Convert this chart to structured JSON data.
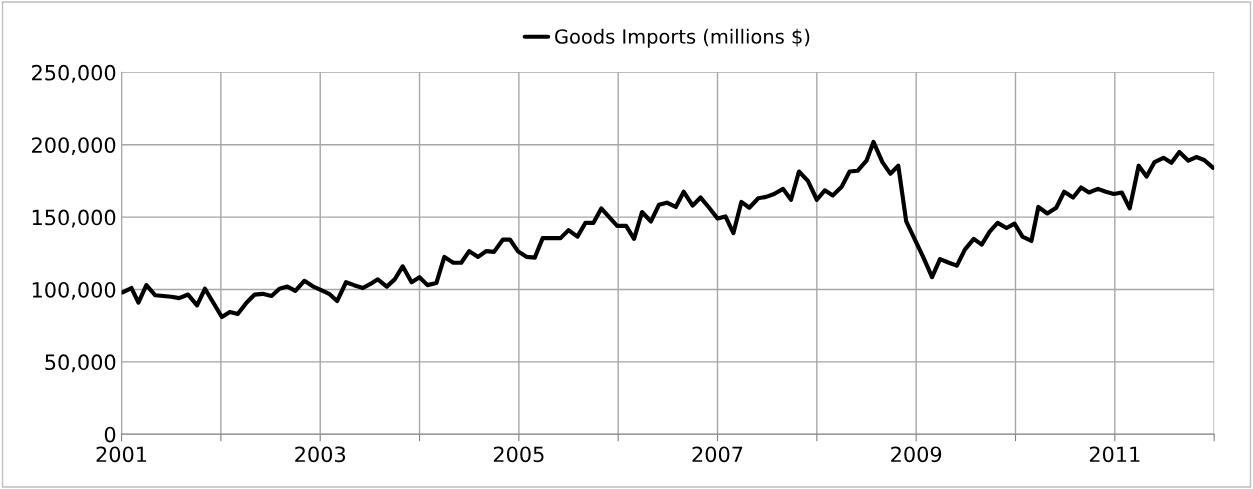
{
  "chart_data": {
    "type": "line",
    "x": [
      2001.01,
      2001.1,
      2001.17,
      2001.25,
      2001.34,
      2001.5,
      2001.58,
      2001.67,
      2001.76,
      2001.84,
      2002.01,
      2002.09,
      2002.17,
      2002.26,
      2002.34,
      2002.42,
      2002.51,
      2002.59,
      2002.67,
      2002.75,
      2002.84,
      2002.93,
      2003.01,
      2003.09,
      2003.17,
      2003.26,
      2003.34,
      2003.43,
      2003.51,
      2003.58,
      2003.67,
      2003.75,
      2003.83,
      2003.92,
      2004.0,
      2004.08,
      2004.17,
      2004.25,
      2004.34,
      2004.42,
      2004.5,
      2004.59,
      2004.67,
      2004.75,
      2004.84,
      2004.91,
      2004.99,
      2005.08,
      2005.16,
      2005.24,
      2005.42,
      2005.5,
      2005.59,
      2005.67,
      2005.75,
      2005.83,
      2005.91,
      2005.99,
      2006.08,
      2006.16,
      2006.24,
      2006.33,
      2006.41,
      2006.49,
      2006.58,
      2006.66,
      2006.75,
      2006.83,
      2006.91,
      2007.0,
      2007.08,
      2007.16,
      2007.24,
      2007.32,
      2007.41,
      2007.49,
      2007.57,
      2007.66,
      2007.74,
      2007.82,
      2007.91,
      2008.0,
      2008.08,
      2008.16,
      2008.25,
      2008.33,
      2008.41,
      2008.5,
      2008.57,
      2008.66,
      2008.74,
      2008.82,
      2008.9,
      2008.98,
      2009.07,
      2009.16,
      2009.24,
      2009.33,
      2009.41,
      2009.49,
      2009.58,
      2009.66,
      2009.74,
      2009.82,
      2009.91,
      2009.99,
      2010.07,
      2010.16,
      2010.23,
      2010.32,
      2010.41,
      2010.49,
      2010.58,
      2010.66,
      2010.74,
      2010.83,
      2010.91,
      2010.99,
      2011.07,
      2011.15,
      2011.24,
      2011.32,
      2011.4,
      2011.49,
      2011.57,
      2011.65,
      2011.74,
      2011.82,
      2011.9,
      2011.99
    ],
    "series": [
      {
        "name": "Goods Imports (millions $)",
        "color": "#000000",
        "values": [
          98000,
          101000,
          91000,
          103000,
          96000,
          95000,
          94000,
          96500,
          89000,
          100500,
          81000,
          84500,
          83000,
          91000,
          96500,
          97000,
          95500,
          100500,
          102000,
          99000,
          106000,
          102000,
          99500,
          97000,
          92000,
          105000,
          103000,
          101000,
          104000,
          107000,
          102000,
          107000,
          116000,
          105000,
          108500,
          103000,
          104500,
          122500,
          118500,
          118500,
          126500,
          122500,
          126500,
          126000,
          134500,
          134500,
          126500,
          122500,
          122000,
          135500,
          135500,
          141000,
          136500,
          146000,
          146000,
          156000,
          150000,
          144000,
          144000,
          135000,
          153500,
          147000,
          158500,
          160000,
          157000,
          167500,
          158000,
          163500,
          157000,
          149000,
          150500,
          139000,
          160500,
          156500,
          163000,
          164000,
          166000,
          169500,
          162000,
          181500,
          175000,
          162000,
          168500,
          165000,
          171000,
          181500,
          182000,
          189000,
          202000,
          188000,
          180000,
          185500,
          147000,
          135500,
          122500,
          108500,
          121000,
          118500,
          116500,
          127500,
          135000,
          131000,
          140000,
          146000,
          142500,
          145500,
          136500,
          133500,
          157000,
          152500,
          156500,
          167500,
          163500,
          170500,
          167000,
          169500,
          167500,
          166000,
          167000,
          156000,
          185500,
          178000,
          188000,
          191000,
          187500,
          195000,
          189000,
          191500,
          189500,
          184000
        ]
      }
    ],
    "xlim": [
      2001,
      2012
    ],
    "xticks": [
      2001,
      {
        "value": 2002,
        "label": null
      },
      2003,
      {
        "value": 2004,
        "label": null
      },
      2005,
      {
        "value": 2006,
        "label": null
      },
      2007,
      {
        "value": 2008,
        "label": null
      },
      2009,
      {
        "value": 2010,
        "label": null
      },
      2011,
      {
        "value": 2012,
        "label": null
      }
    ],
    "ylim": [
      0,
      250000
    ],
    "yticks": [
      {
        "value": 0,
        "label": "0"
      },
      {
        "value": 50000,
        "label": "50,000"
      },
      {
        "value": 100000,
        "label": "100,000"
      },
      {
        "value": 150000,
        "label": "150,000"
      },
      {
        "value": 200000,
        "label": "200,000"
      },
      {
        "value": 250000,
        "label": "250,000"
      }
    ],
    "grid": true,
    "legend": "top",
    "marker": "none",
    "line_style": "solid"
  }
}
